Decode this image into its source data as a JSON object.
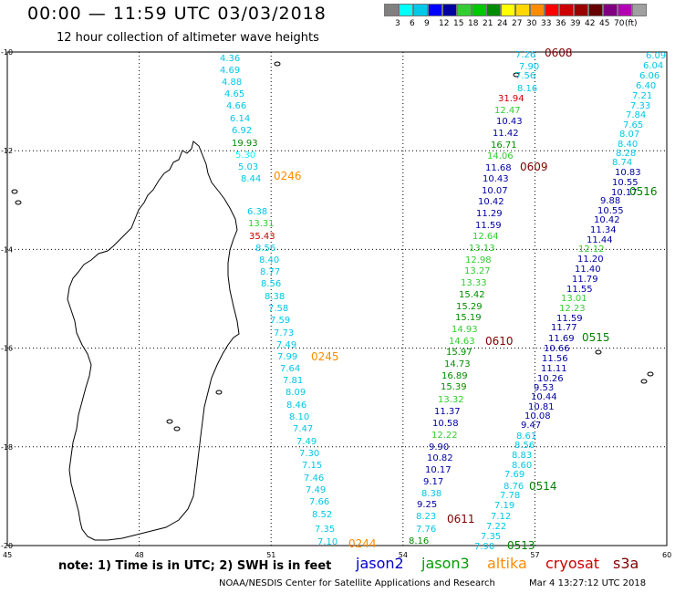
{
  "header": {
    "title": "00:00 — 11:59 UTC 03/03/2018",
    "subtitle": "12 hour collection of altimeter wave heights"
  },
  "legend": {
    "colors": [
      "#808080",
      "#00ffff",
      "#00c8e6",
      "#0000ff",
      "#0000a0",
      "#32cd32",
      "#00c800",
      "#008c00",
      "#ffff00",
      "#ffd700",
      "#ff8c00",
      "#ff0000",
      "#cc0000",
      "#990000",
      "#660000",
      "#800080",
      "#b400b4",
      "#a0a0a0"
    ],
    "labels": [
      "3",
      "6",
      "9",
      "12",
      "15",
      "18",
      "21",
      "24",
      "27",
      "30",
      "33",
      "36",
      "39",
      "42",
      "45",
      "70",
      "(ft)"
    ]
  },
  "map": {
    "lat_ticks": [
      "-10",
      "-12",
      "-14",
      "-16",
      "-18",
      "-20"
    ],
    "lon_ticks": [
      "45",
      "48",
      "51",
      "54",
      "57",
      "60"
    ]
  },
  "track_labels": [
    {
      "text": "0246",
      "color": "#ff8c00"
    },
    {
      "text": "0245",
      "color": "#ff8c00"
    },
    {
      "text": "0244",
      "color": "#ff8c00"
    },
    {
      "text": "0608",
      "color": "#800000"
    },
    {
      "text": "0609",
      "color": "#800000"
    },
    {
      "text": "0610",
      "color": "#800000"
    },
    {
      "text": "0611",
      "color": "#800000"
    },
    {
      "text": "0516",
      "color": "#008000"
    },
    {
      "text": "0515",
      "color": "#008000"
    },
    {
      "text": "0514",
      "color": "#008000"
    },
    {
      "text": "0513",
      "color": "#008000"
    }
  ],
  "tracks": {
    "altika_track": [
      "4.36",
      "4.69",
      "4.88",
      "4.65",
      "4.66",
      "6.14",
      "6.92",
      "19.93",
      "5.30",
      "5.03",
      "8.44",
      "6.38",
      "13.31",
      "35.43",
      "8.56",
      "8.40",
      "8.77",
      "8.56",
      "8.38",
      "7.58",
      "7.59",
      "7.73",
      "7.49",
      "7.99",
      "7.64",
      "7.81",
      "8.09",
      "8.46",
      "8.10",
      "7.47",
      "7.49",
      "7.30",
      "7.15",
      "7.46",
      "7.49",
      "7.66",
      "8.52",
      "7.35",
      "7.10"
    ],
    "altika_colors": [
      "#00c8e6",
      "#00c8e6",
      "#00c8e6",
      "#00c8e6",
      "#00c8e6",
      "#00c8e6",
      "#00c8e6",
      "#008c00",
      "#00ffff",
      "#00c8e6",
      "#00c8e6",
      "#00c8e6",
      "#32cd32",
      "#cc0000",
      "#00c8e6",
      "#00c8e6",
      "#00c8e6",
      "#00c8e6",
      "#00c8e6",
      "#00c8e6",
      "#00c8e6",
      "#00c8e6",
      "#00c8e6",
      "#00c8e6",
      "#00c8e6",
      "#00c8e6",
      "#00c8e6",
      "#00c8e6",
      "#00c8e6",
      "#00c8e6",
      "#00c8e6",
      "#00c8e6",
      "#00c8e6",
      "#00c8e6",
      "#00c8e6",
      "#00c8e6",
      "#00c8e6",
      "#00c8e6",
      "#00c8e6"
    ],
    "cryosat_track": [
      "7.26",
      "7.90",
      "7.56",
      "8.16",
      "31.94",
      "12.47",
      "10.43",
      "11.42",
      "16.71",
      "14.06",
      "11.68",
      "10.43",
      "10.07",
      "10.42",
      "11.29",
      "11.59",
      "12.64",
      "13.13",
      "12.98",
      "13.27",
      "13.33",
      "15.42",
      "15.29",
      "15.19",
      "14.93",
      "14.63",
      "15.97",
      "14.73",
      "16.89",
      "15.39",
      "13.32",
      "11.37",
      "10.58",
      "12.22",
      "9.90",
      "10.82",
      "10.17",
      "9.17",
      "8.38",
      "9.25",
      "8.23",
      "7.76",
      "8.16"
    ],
    "cryosat_colors": [
      "#00c8e6",
      "#00c8e6",
      "#00c8e6",
      "#00c8e6",
      "#cc0000",
      "#32cd32",
      "#0000a0",
      "#0000a0",
      "#008c00",
      "#32cd32",
      "#0000a0",
      "#0000a0",
      "#0000a0",
      "#0000a0",
      "#0000a0",
      "#0000a0",
      "#32cd32",
      "#32cd32",
      "#32cd32",
      "#32cd32",
      "#32cd32",
      "#008c00",
      "#008c00",
      "#008c00",
      "#32cd32",
      "#32cd32",
      "#008c00",
      "#008c00",
      "#008c00",
      "#008c00",
      "#32cd32",
      "#0000a0",
      "#0000a0",
      "#32cd32",
      "#0000a0",
      "#0000a0",
      "#0000a0",
      "#0000a0",
      "#00c8e6",
      "#0000a0",
      "#00c8e6",
      "#00c8e6",
      "#008c00"
    ],
    "jason3_track": [
      "6.09",
      "6.04",
      "6.06",
      "6.40",
      "7.21",
      "7.33",
      "7.84",
      "7.65",
      "8.07",
      "8.40",
      "8.28",
      "8.74",
      "10.83",
      "10.55",
      "10.17",
      "9.88",
      "10.55",
      "10.42",
      "11.34",
      "11.44",
      "12.12",
      "11.20",
      "11.40",
      "11.79",
      "11.55",
      "13.01",
      "12.23",
      "11.59",
      "11.77",
      "11.69",
      "10.66",
      "11.56",
      "11.11",
      "10.26",
      "9.53",
      "10.44",
      "10.81",
      "10.08",
      "9.47",
      "8.61",
      "8.56",
      "8.83",
      "8.60",
      "7.69",
      "8.76",
      "7.78",
      "7.19",
      "7.12",
      "7.22",
      "7.35",
      "7.90"
    ],
    "jason3_colors": [
      "#00c8e6",
      "#00c8e6",
      "#00c8e6",
      "#00c8e6",
      "#00c8e6",
      "#00c8e6",
      "#00c8e6",
      "#00c8e6",
      "#00c8e6",
      "#00c8e6",
      "#00c8e6",
      "#00c8e6",
      "#0000a0",
      "#0000a0",
      "#0000a0",
      "#0000a0",
      "#0000a0",
      "#0000a0",
      "#0000a0",
      "#0000a0",
      "#32cd32",
      "#0000a0",
      "#0000a0",
      "#0000a0",
      "#0000a0",
      "#32cd32",
      "#32cd32",
      "#0000a0",
      "#0000a0",
      "#0000a0",
      "#0000a0",
      "#0000a0",
      "#0000a0",
      "#0000a0",
      "#0000a0",
      "#0000a0",
      "#0000a0",
      "#0000a0",
      "#0000a0",
      "#00c8e6",
      "#00c8e6",
      "#00c8e6",
      "#00c8e6",
      "#00c8e6",
      "#00c8e6",
      "#00c8e6",
      "#00c8e6",
      "#00c8e6",
      "#00c8e6",
      "#00c8e6",
      "#00c8e6"
    ]
  },
  "footer": {
    "note": "note: 1) Time is in UTC; 2) SWH is in feet",
    "satellites": [
      {
        "name": "jason2",
        "color": "#0000cd"
      },
      {
        "name": "jason3",
        "color": "#00a000"
      },
      {
        "name": "altika",
        "color": "#ff8c00"
      },
      {
        "name": "cryosat",
        "color": "#cc0000"
      },
      {
        "name": "s3a",
        "color": "#800000"
      }
    ],
    "credit": "NOAA/NESDIS Center for Satellite Applications and Research",
    "timestamp": "Mar  4 13:27:12 UTC 2018"
  }
}
